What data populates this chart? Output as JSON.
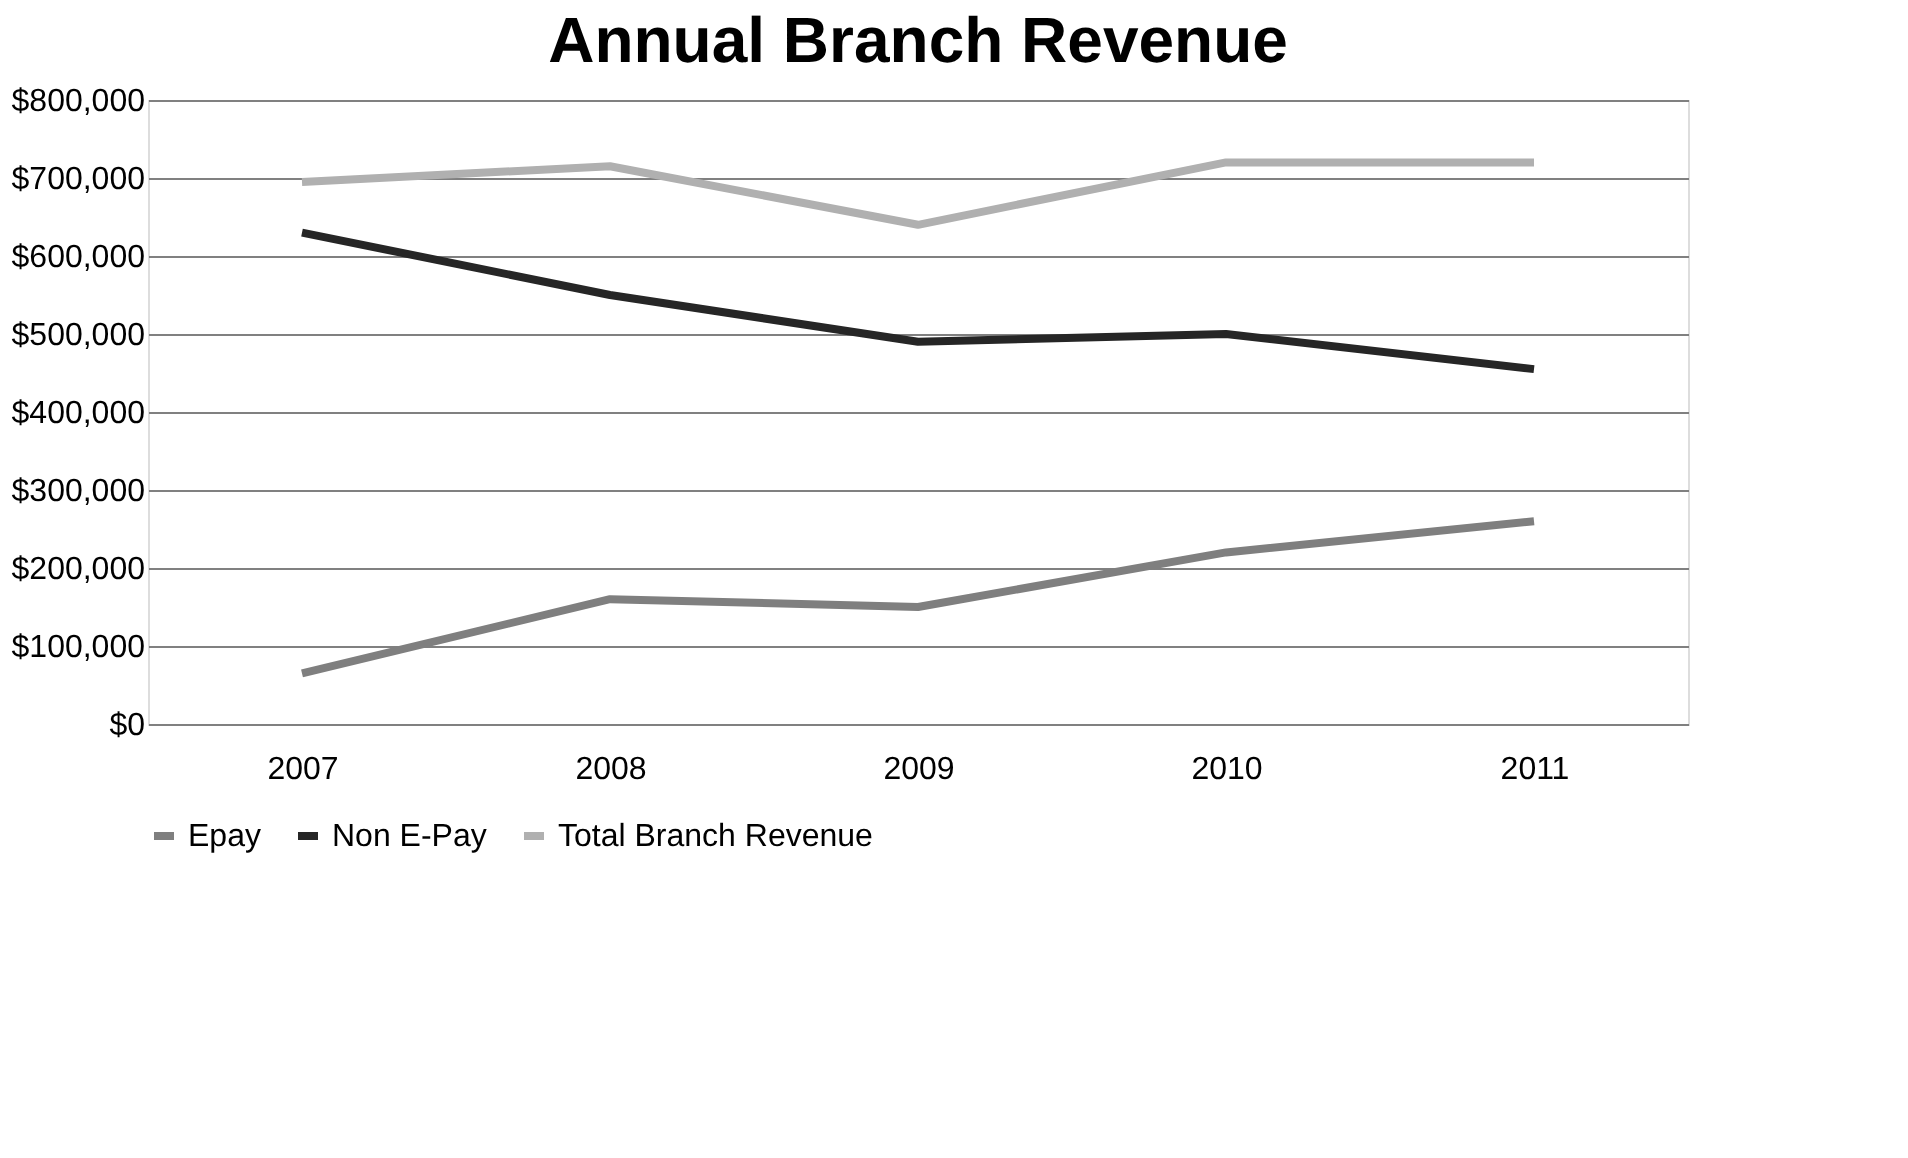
{
  "chart_data": {
    "type": "line",
    "title": "Annual Branch Revenue",
    "categories": [
      "2007",
      "2008",
      "2009",
      "2010",
      "2011"
    ],
    "series": [
      {
        "name": "Epay",
        "color": "#7f7f7f",
        "values": [
          65000,
          160000,
          150000,
          220000,
          260000
        ]
      },
      {
        "name": "Non E-Pay",
        "color": "#262626",
        "values": [
          630000,
          550000,
          490000,
          500000,
          455000
        ]
      },
      {
        "name": "Total Branch Revenue",
        "color": "#b0b0b0",
        "values": [
          695000,
          715000,
          640000,
          720000,
          720000
        ]
      }
    ],
    "ylim": [
      0,
      800000
    ],
    "yticks": [
      {
        "value": 0,
        "label": "$0"
      },
      {
        "value": 100000,
        "label": "$100,000"
      },
      {
        "value": 200000,
        "label": "$200,000"
      },
      {
        "value": 300000,
        "label": "$300,000"
      },
      {
        "value": 400000,
        "label": "$400,000"
      },
      {
        "value": 500000,
        "label": "$500,000"
      },
      {
        "value": 600000,
        "label": "$600,000"
      },
      {
        "value": 700000,
        "label": "$700,000"
      },
      {
        "value": 800000,
        "label": "$800,000"
      }
    ],
    "grid": "y",
    "legend": "bottom",
    "marker": "none",
    "line_style": "solid"
  }
}
